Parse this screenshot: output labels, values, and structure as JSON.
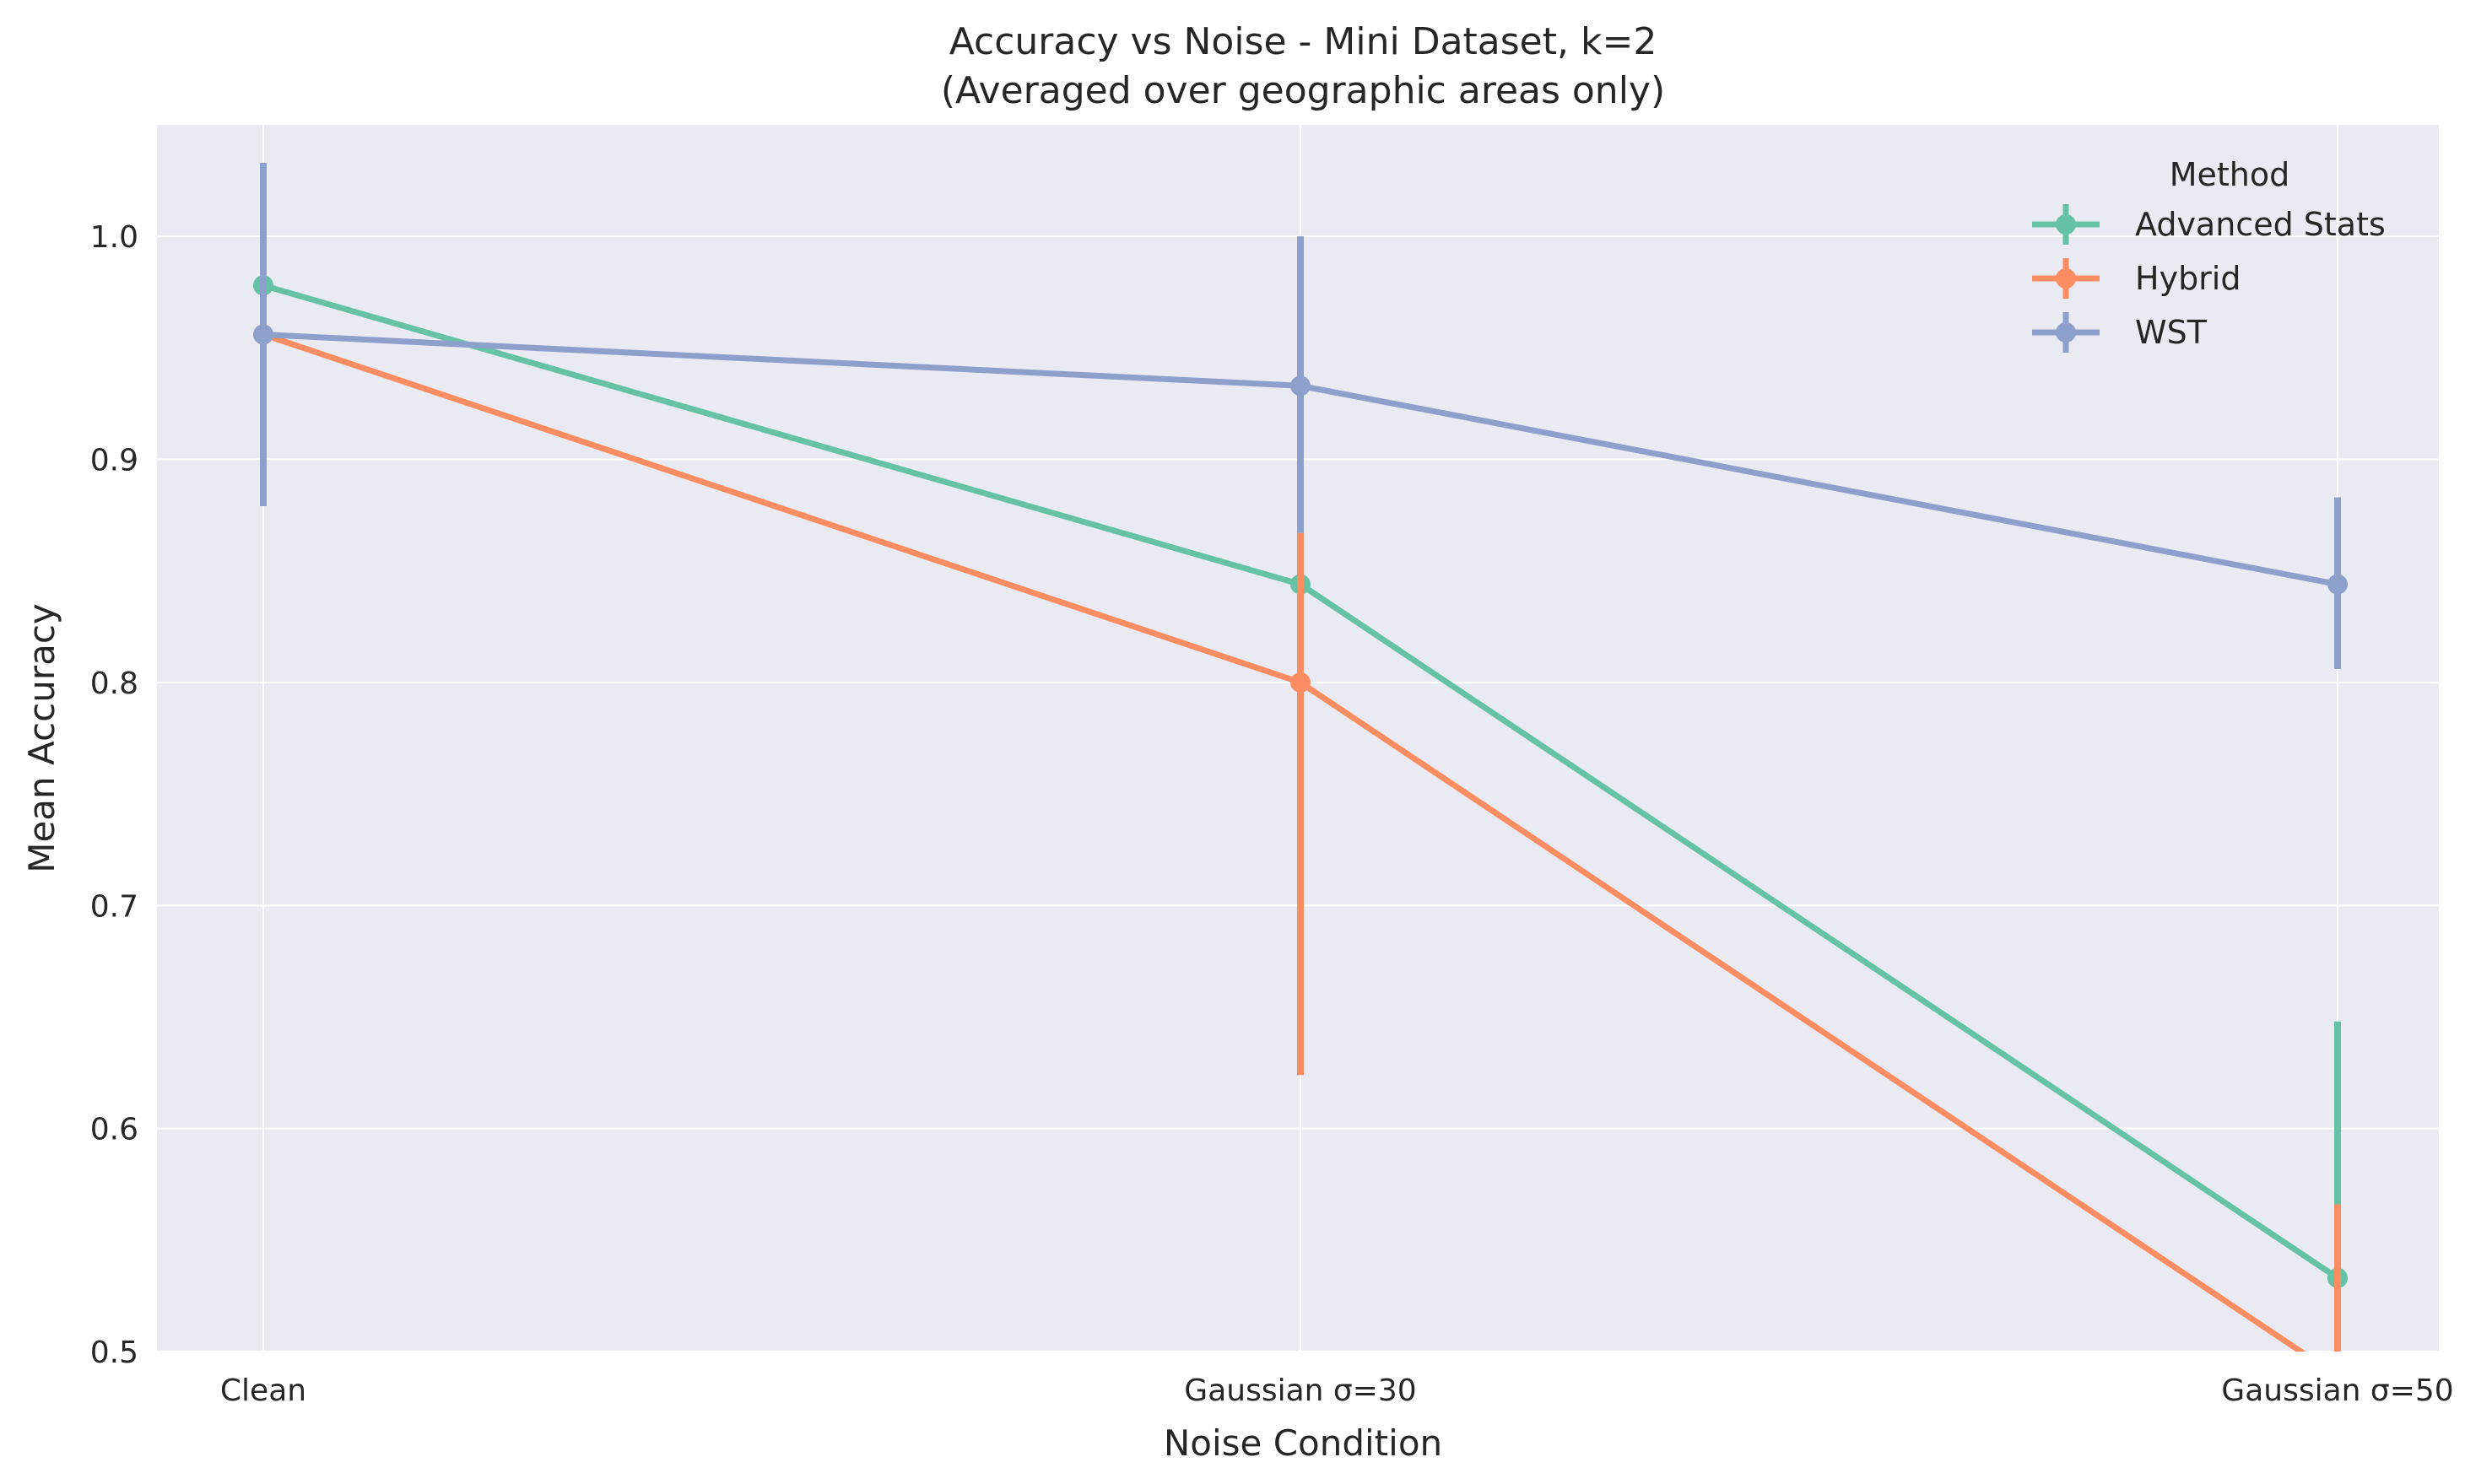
{
  "chart_data": {
    "type": "line",
    "title": "Accuracy vs Noise - Mini Dataset, k=2",
    "subtitle": "(Averaged over geographic areas only)",
    "xlabel": "Noise Condition",
    "ylabel": "Mean Accuracy",
    "categories": [
      "Clean",
      "Gaussian σ=30",
      "Gaussian σ=50"
    ],
    "ylim": [
      0.5,
      1.05
    ],
    "yticks": [
      "0.5",
      "0.6",
      "0.7",
      "0.8",
      "0.9",
      "1.0"
    ],
    "grid": true,
    "legend_title": "Method",
    "legend_position": "top-right",
    "series": [
      {
        "name": "Advanced Stats",
        "color": "#66c2a5",
        "values": [
          0.978,
          0.844,
          0.533
        ],
        "err_low": [
          null,
          null,
          0.418
        ],
        "err_high": [
          null,
          null,
          0.648
        ]
      },
      {
        "name": "Hybrid",
        "color": "#fc8d62",
        "values": [
          0.956,
          0.8,
          0.489
        ],
        "err_low": [
          null,
          0.624,
          0.41
        ],
        "err_high": [
          null,
          0.867,
          0.566
        ]
      },
      {
        "name": "WST",
        "color": "#8da0cb",
        "values": [
          0.956,
          0.933,
          0.844
        ],
        "err_low": [
          0.879,
          0.867,
          0.806
        ],
        "err_high": [
          1.033,
          1.0,
          0.883
        ]
      }
    ]
  }
}
